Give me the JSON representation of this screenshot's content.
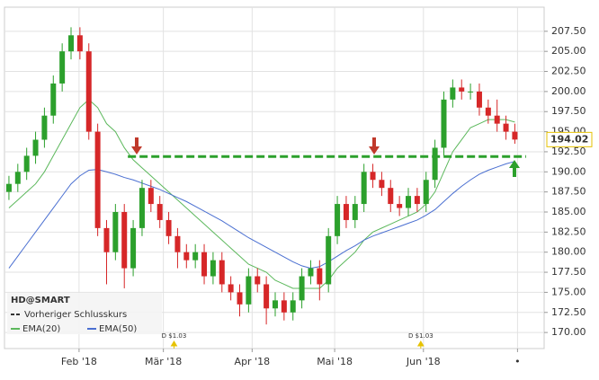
{
  "chart_data": {
    "type": "candlestick",
    "xlim": [
      -0.5,
      60.3
    ],
    "ylim": [
      168,
      210.5
    ],
    "xticks": [
      {
        "value": 7.9,
        "label": "Feb '18"
      },
      {
        "value": 17.4,
        "label": "Mär '18"
      },
      {
        "value": 27.4,
        "label": "Apr '18"
      },
      {
        "value": 36.7,
        "label": "Mai '18"
      },
      {
        "value": 46.7,
        "label": "Jun '18"
      },
      {
        "value": 57.3,
        "label": "•"
      }
    ],
    "yticks": [
      {
        "value": 170,
        "label": "170.00"
      },
      {
        "value": 172.5,
        "label": "172.50"
      },
      {
        "value": 175,
        "label": "175.00"
      },
      {
        "value": 177.5,
        "label": "177.50"
      },
      {
        "value": 180,
        "label": "180.00"
      },
      {
        "value": 182.5,
        "label": "182.50"
      },
      {
        "value": 185,
        "label": "185.00"
      },
      {
        "value": 187.5,
        "label": "187.50"
      },
      {
        "value": 190,
        "label": "190.00"
      },
      {
        "value": 192.5,
        "label": "192.50"
      },
      {
        "value": 195,
        "label": "195.00"
      },
      {
        "value": 197.5,
        "label": "197.50"
      },
      {
        "value": 200,
        "label": "200.00"
      },
      {
        "value": 202.5,
        "label": "202.50"
      },
      {
        "value": 205,
        "label": "205.00"
      },
      {
        "value": 207.5,
        "label": "207.50"
      }
    ],
    "grid": true,
    "up_color": "#2ca02c",
    "down_color": "#d62728",
    "name": "HD@SMART",
    "open": [
      187.5,
      188.5,
      190,
      192,
      194,
      197,
      201,
      205,
      207,
      205,
      195,
      183,
      180,
      185,
      178,
      183,
      188,
      186,
      184,
      182,
      180,
      179,
      180,
      177,
      179,
      176,
      175,
      173.5,
      177,
      176,
      173,
      174,
      172.5,
      174,
      177,
      178,
      176,
      182,
      186,
      184,
      186,
      190,
      189,
      188,
      186,
      185.5,
      187,
      186,
      189,
      193,
      199,
      200.5,
      200,
      200,
      198,
      197,
      196,
      195
    ],
    "high": [
      189.5,
      191,
      193,
      195,
      198,
      202,
      206,
      208,
      208,
      206,
      196,
      184,
      186,
      186,
      184,
      189,
      189,
      187,
      185,
      183,
      181,
      181,
      181,
      180,
      180,
      177,
      176,
      178,
      178,
      177,
      175,
      175,
      175,
      178,
      179,
      179,
      183,
      187,
      187,
      187,
      191,
      191,
      190,
      189,
      187,
      188,
      188,
      190,
      194,
      200,
      201.5,
      201.5,
      201,
      201,
      199,
      199,
      197,
      196
    ],
    "low": [
      186.5,
      187.5,
      189,
      191,
      193,
      196,
      200,
      204,
      204,
      194,
      182,
      176,
      179,
      175.5,
      177,
      182,
      185,
      183,
      181,
      178,
      178,
      178,
      176,
      176,
      175,
      174,
      172,
      172.5,
      175,
      171,
      172,
      171.5,
      171.5,
      173,
      176,
      174,
      175,
      181,
      183,
      183,
      185,
      188,
      187,
      185,
      184.5,
      184.5,
      185,
      185,
      188,
      192,
      198,
      199,
      199,
      197,
      196,
      195,
      194,
      193.5
    ],
    "close": [
      188.5,
      190,
      192,
      194,
      197,
      201,
      205,
      207,
      205,
      195,
      183,
      180,
      185,
      178,
      183,
      188,
      186,
      184,
      182,
      180,
      179,
      180,
      177,
      179,
      176,
      175,
      173.5,
      177,
      176,
      173,
      174,
      172.5,
      174,
      177,
      178,
      176,
      182,
      186,
      184,
      186,
      190,
      189,
      188,
      186,
      185.5,
      187,
      186,
      189,
      193,
      199,
      200.5,
      200,
      200,
      198,
      197,
      196,
      195,
      194.02
    ],
    "last_label": "194.02",
    "previous_close": {
      "name": "Vorheriger Schlusskurs",
      "value": 191.9,
      "color": "#2ca02c"
    },
    "series": [
      {
        "name": "EMA(20)",
        "color": "#5cb85c",
        "values": [
          185.5,
          186.5,
          187.5,
          188.5,
          190,
          192,
          194,
          196,
          198,
          199,
          198,
          196,
          195,
          193,
          191.5,
          190.5,
          189.5,
          188.5,
          187.5,
          186.5,
          185.5,
          184.5,
          183.5,
          182.5,
          181.5,
          180.5,
          179.5,
          178.5,
          178,
          177.5,
          176.5,
          176,
          175.5,
          175.5,
          175.5,
          175.5,
          176.5,
          178,
          179,
          180,
          181.5,
          182.5,
          183,
          183.5,
          184,
          184.5,
          185,
          186,
          187.5,
          190,
          192.5,
          194,
          195.5,
          196,
          196.5,
          196.5,
          196.5,
          196.2
        ]
      },
      {
        "name": "EMA(50)",
        "color": "#4a6fd1",
        "values": [
          178,
          179.5,
          181,
          182.5,
          184,
          185.5,
          187,
          188.5,
          189.5,
          190.2,
          190.3,
          190,
          189.7,
          189.3,
          189,
          188.6,
          188.2,
          187.8,
          187.3,
          186.8,
          186.3,
          185.7,
          185.1,
          184.5,
          183.9,
          183.2,
          182.5,
          181.8,
          181.2,
          180.6,
          180,
          179.4,
          178.8,
          178.3,
          178,
          178.2,
          178.8,
          179.5,
          180.2,
          180.8,
          181.5,
          182,
          182.4,
          182.8,
          183.2,
          183.6,
          184,
          184.6,
          185.3,
          186.3,
          187.3,
          188.2,
          189,
          189.7,
          190.2,
          190.6,
          191,
          191.3
        ]
      }
    ],
    "dividends": [
      {
        "x": 18.6,
        "label": "D $1.03"
      },
      {
        "x": 46.4,
        "label": "D $1.03"
      }
    ]
  }
}
